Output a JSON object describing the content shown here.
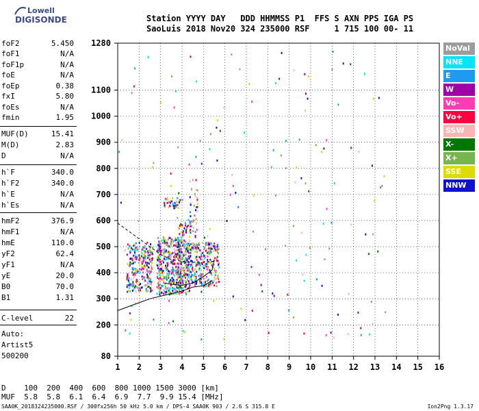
{
  "logo": {
    "line1": "Lowell",
    "line2": "DIGISONDE"
  },
  "header": {
    "line1": "Station YYYY DAY   DDD HHMMSS P1  FFS S AXN PPS IGA PS",
    "line2": "SaoLuis 2018 Nov20 324 235000 RSF     1 715 100 00- 11"
  },
  "params": [
    {
      "label": "foF2",
      "value": "5.450"
    },
    {
      "label": "foF1",
      "value": "N/A"
    },
    {
      "label": "foF1p",
      "value": "N/A"
    },
    {
      "label": "foE",
      "value": "N/A"
    },
    {
      "label": "foEp",
      "value": "0.38"
    },
    {
      "label": "fxI",
      "value": "5.80"
    },
    {
      "label": "foEs",
      "value": "N/A"
    },
    {
      "label": "fmin",
      "value": "1.95"
    },
    {
      "label": "MUF(D)",
      "value": "15.41"
    },
    {
      "label": "M(D)",
      "value": "2.83"
    },
    {
      "label": "D",
      "value": "N/A"
    },
    {
      "label": "h`F",
      "value": "340.0"
    },
    {
      "label": "h`F2",
      "value": "340.0"
    },
    {
      "label": "h`E",
      "value": "N/A"
    },
    {
      "label": "h`Es",
      "value": "N/A"
    },
    {
      "label": "hmF2",
      "value": "376.9"
    },
    {
      "label": "hmF1",
      "value": "N/A"
    },
    {
      "label": "hmE",
      "value": "110.0"
    },
    {
      "label": "yF2",
      "value": "62.4"
    },
    {
      "label": "yF1",
      "value": "N/A"
    },
    {
      "label": "yE",
      "value": "20.0"
    },
    {
      "label": "B0",
      "value": "70.0"
    },
    {
      "label": "B1",
      "value": "1.31"
    },
    {
      "label": "C-level",
      "value": "22"
    }
  ],
  "auto": {
    "line1": "Auto:",
    "line2": "Artist5",
    "line3": "500200"
  },
  "muf_table": {
    "d_row": "D    100  200  400  600  800 1000 1500 3000 [km]",
    "muf_row": "MUF  5.8  5.8  6.1  6.4  6.9  7.7  9.9 15.4 [MHz]"
  },
  "footer": {
    "left": "SAA0K_2018324235000.RSF / 300fx256h 50 kHz 5.0 km / DPS-4 SAA0K 903 / 2.6 S 315.8 E",
    "right": "Ion2Png 1.3.17"
  },
  "legend": [
    {
      "label": "NoVal",
      "color": "#9c9c9c"
    },
    {
      "label": "NNE",
      "color": "#00e5ff"
    },
    {
      "label": "E",
      "color": "#1e9bf0"
    },
    {
      "label": "W",
      "color": "#a000a8"
    },
    {
      "label": "Vo-",
      "color": "#ff3cb4"
    },
    {
      "label": "Vo+",
      "color": "#ff0040"
    },
    {
      "label": "SSW",
      "color": "#ffb4b4"
    },
    {
      "label": "X-",
      "color": "#007800"
    },
    {
      "label": "X+",
      "color": "#78b450"
    },
    {
      "label": "SSE",
      "color": "#dcdc00"
    },
    {
      "label": "NNW",
      "color": "#1010d0"
    }
  ],
  "chart_data": {
    "type": "scatter",
    "xlim": [
      1,
      16
    ],
    "ylim": [
      80,
      1280
    ],
    "x_ticks": [
      1,
      2,
      3,
      4,
      5,
      6,
      7,
      8,
      9,
      10,
      11,
      12,
      13,
      14,
      15,
      16
    ],
    "y_ticks": [
      80,
      200,
      300,
      400,
      500,
      600,
      700,
      800,
      900,
      1000,
      1100,
      1280
    ],
    "grid": true,
    "clusters": [
      {
        "fmin": 1.4,
        "fmax": 2.6,
        "hmin": 330,
        "hmax": 520,
        "count": 260
      },
      {
        "fmin": 2.8,
        "fmax": 4.0,
        "hmin": 320,
        "hmax": 540,
        "count": 420
      },
      {
        "fmin": 4.0,
        "fmax": 5.7,
        "hmin": 350,
        "hmax": 520,
        "count": 300
      },
      {
        "fmin": 3.8,
        "fmax": 4.4,
        "hmin": 320,
        "hmax": 600,
        "count": 140
      },
      {
        "fmin": 4.3,
        "fmax": 4.7,
        "hmin": 540,
        "hmax": 760,
        "count": 40
      },
      {
        "fmin": 3.1,
        "fmax": 3.9,
        "hmin": 650,
        "hmax": 690,
        "count": 40
      },
      {
        "fmin": 1.0,
        "fmax": 13.5,
        "hmin": 140,
        "hmax": 1260,
        "count": 170
      }
    ],
    "trace_dashed": [
      [
        1,
        590
      ],
      [
        1.5,
        560
      ],
      [
        2.0,
        530
      ],
      [
        2.5,
        500
      ],
      [
        3.0,
        470
      ],
      [
        3.5,
        450
      ],
      [
        4.3,
        440
      ],
      [
        5.0,
        440
      ],
      [
        5.6,
        445
      ]
    ],
    "trace_solid": [
      [
        1,
        255
      ],
      [
        1.5,
        270
      ],
      [
        2.0,
        285
      ],
      [
        2.5,
        300
      ],
      [
        3.0,
        310
      ],
      [
        3.5,
        320
      ],
      [
        4.0,
        330
      ],
      [
        4.5,
        345
      ],
      [
        5.0,
        350
      ],
      [
        5.4,
        370
      ]
    ],
    "trace_solid2": [
      [
        3.2,
        360
      ],
      [
        3.6,
        355
      ],
      [
        4.0,
        352
      ],
      [
        4.5,
        360
      ],
      [
        5.0,
        385
      ],
      [
        5.4,
        410
      ],
      [
        5.5,
        450
      ]
    ]
  }
}
